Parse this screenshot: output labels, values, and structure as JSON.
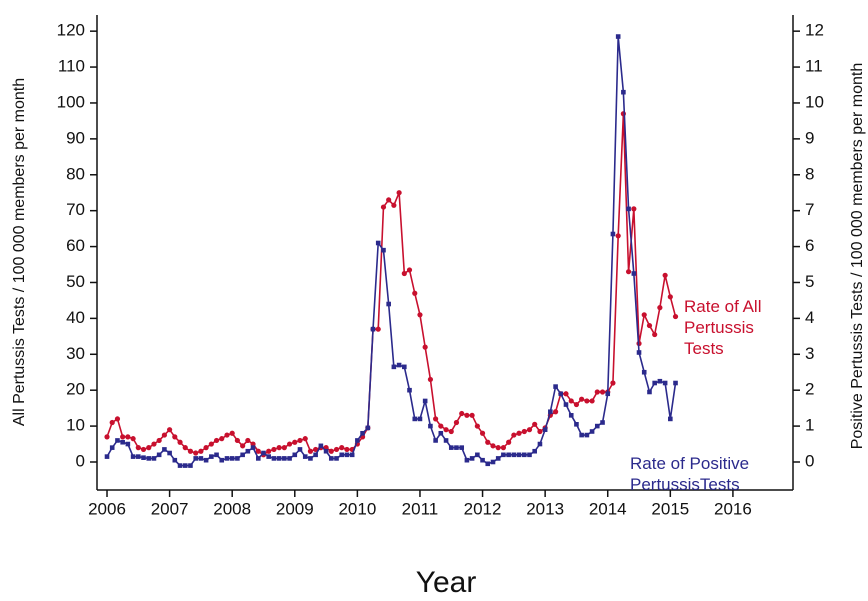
{
  "chart_data": {
    "type": "line",
    "xlabel": "Year",
    "ylabel": "All Pertussis Tests / 100 000 members per month",
    "y2label": "Positive Pertussis Tests / 100 000 members per month",
    "xlim": [
      2005.84,
      2016.96
    ],
    "xticks": [
      2006,
      2007,
      2008,
      2009,
      2010,
      2011,
      2012,
      2013,
      2014,
      2015,
      2016
    ],
    "ylim": [
      -7.8,
      124.5
    ],
    "yticks": [
      0,
      10,
      20,
      30,
      40,
      50,
      60,
      70,
      80,
      90,
      100,
      110,
      120
    ],
    "y2lim": [
      -0.78,
      12.45
    ],
    "y2ticks": [
      0,
      1,
      2,
      3,
      4,
      5,
      6,
      7,
      8,
      9,
      10,
      11,
      12
    ],
    "x": [
      2006,
      2006.083,
      2006.167,
      2006.25,
      2006.333,
      2006.417,
      2006.5,
      2006.583,
      2006.667,
      2006.75,
      2006.833,
      2006.917,
      2007,
      2007.083,
      2007.167,
      2007.25,
      2007.333,
      2007.417,
      2007.5,
      2007.583,
      2007.667,
      2007.75,
      2007.833,
      2007.917,
      2008,
      2008.083,
      2008.167,
      2008.25,
      2008.333,
      2008.417,
      2008.5,
      2008.583,
      2008.667,
      2008.75,
      2008.833,
      2008.917,
      2009,
      2009.083,
      2009.167,
      2009.25,
      2009.333,
      2009.417,
      2009.5,
      2009.583,
      2009.667,
      2009.75,
      2009.833,
      2009.917,
      2010,
      2010.083,
      2010.167,
      2010.25,
      2010.333,
      2010.417,
      2010.5,
      2010.583,
      2010.667,
      2010.75,
      2010.833,
      2010.917,
      2011,
      2011.083,
      2011.167,
      2011.25,
      2011.333,
      2011.417,
      2011.5,
      2011.583,
      2011.667,
      2011.75,
      2011.833,
      2011.917,
      2012,
      2012.083,
      2012.167,
      2012.25,
      2012.333,
      2012.417,
      2012.5,
      2012.583,
      2012.667,
      2012.75,
      2012.833,
      2012.917,
      2013,
      2013.083,
      2013.167,
      2013.25,
      2013.333,
      2013.417,
      2013.5,
      2013.583,
      2013.667,
      2013.75,
      2013.833,
      2013.917,
      2014,
      2014.083,
      2014.167,
      2014.25,
      2014.333,
      2014.417,
      2014.5,
      2014.583,
      2014.667,
      2014.75,
      2014.833,
      2014.917,
      2015,
      2015.083
    ],
    "series": [
      {
        "name": "Rate of All Pertussis Tests",
        "color": "#c8102e",
        "marker": "circle",
        "values": [
          7,
          11,
          12,
          7,
          7,
          6.5,
          4,
          3.5,
          4,
          5,
          6,
          7.5,
          9,
          7,
          5.5,
          4,
          3,
          2.5,
          3,
          4,
          5,
          6,
          6.5,
          7.5,
          8,
          6,
          4.5,
          6,
          5,
          3,
          2,
          3,
          3.5,
          4,
          4,
          5,
          5.5,
          6,
          6.5,
          3,
          3.5,
          4,
          4,
          3,
          3.5,
          4,
          3.5,
          3.5,
          5,
          7,
          9.5,
          37,
          37,
          71,
          73,
          71.5,
          75,
          52.5,
          53.5,
          47,
          41,
          32,
          23,
          12,
          10,
          9,
          8.5,
          11,
          13.5,
          13,
          13,
          10,
          8,
          5.5,
          4.5,
          4,
          4,
          5.5,
          7.5,
          8,
          8.5,
          9,
          10.5,
          8.5,
          9.5,
          13,
          14,
          19,
          19,
          17,
          16,
          17.5,
          17,
          17,
          19.5,
          19.5,
          19.5,
          22,
          63,
          97,
          53,
          70.5,
          33,
          41,
          38,
          35.5,
          43,
          52,
          46,
          40.5
        ]
      },
      {
        "name": "Rate of Positive PertussisTests",
        "color": "#2b2a8c",
        "marker": "square",
        "axis": "y2",
        "values": [
          0.15,
          0.4,
          0.6,
          0.55,
          0.5,
          0.15,
          0.15,
          0.12,
          0.1,
          0.1,
          0.2,
          0.35,
          0.25,
          0.05,
          -0.1,
          -0.1,
          -0.1,
          0.1,
          0.1,
          0.05,
          0.15,
          0.2,
          0.05,
          0.1,
          0.1,
          0.1,
          0.2,
          0.3,
          0.4,
          0.1,
          0.25,
          0.15,
          0.1,
          0.1,
          0.1,
          0.1,
          0.2,
          0.35,
          0.15,
          0.1,
          0.2,
          0.45,
          0.3,
          0.1,
          0.1,
          0.2,
          0.2,
          0.2,
          0.6,
          0.8,
          0.95,
          3.7,
          6.1,
          5.9,
          4.4,
          2.65,
          2.7,
          2.65,
          2.0,
          1.2,
          1.2,
          1.7,
          1.0,
          0.6,
          0.8,
          0.6,
          0.4,
          0.4,
          0.4,
          0.05,
          0.1,
          0.2,
          0.05,
          -0.05,
          0.0,
          0.1,
          0.2,
          0.2,
          0.2,
          0.2,
          0.2,
          0.2,
          0.3,
          0.5,
          0.9,
          1.4,
          2.1,
          1.9,
          1.6,
          1.3,
          1.05,
          0.75,
          0.75,
          0.85,
          1.0,
          1.1,
          1.9,
          6.35,
          11.85,
          10.3,
          7.05,
          5.25,
          3.05,
          2.5,
          1.95,
          2.2,
          2.25,
          2.2,
          1.2,
          2.2
        ]
      }
    ]
  }
}
